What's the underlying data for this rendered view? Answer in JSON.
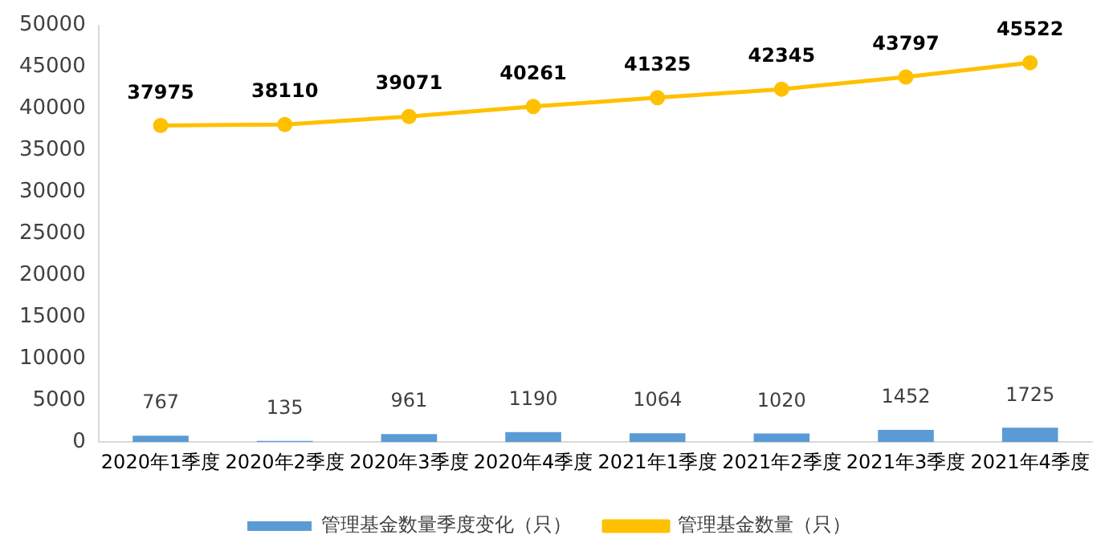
{
  "chart_data": {
    "type": "bar",
    "categories": [
      "2020年1季度",
      "2020年2季度",
      "2020年3季度",
      "2020年4季度",
      "2021年1季度",
      "2021年2季度",
      "2021年3季度",
      "2021年4季度"
    ],
    "series": [
      {
        "name": "管理基金数量季度变化（只）",
        "color": "#5b9bd5",
        "values": [
          767,
          135,
          961,
          1190,
          1064,
          1020,
          1452,
          1725
        ]
      },
      {
        "name": "管理基金数量（只）",
        "type": "line",
        "color": "#ffc000",
        "marker": "circle",
        "values": [
          37975,
          38110,
          39071,
          40261,
          41325,
          42345,
          43797,
          45522
        ]
      }
    ],
    "ylim": [
      0,
      50000
    ],
    "yticks": [
      0,
      5000,
      10000,
      15000,
      20000,
      25000,
      30000,
      35000,
      40000,
      45000,
      50000
    ],
    "grid": false,
    "legend": "bottom",
    "data_labels": true
  }
}
